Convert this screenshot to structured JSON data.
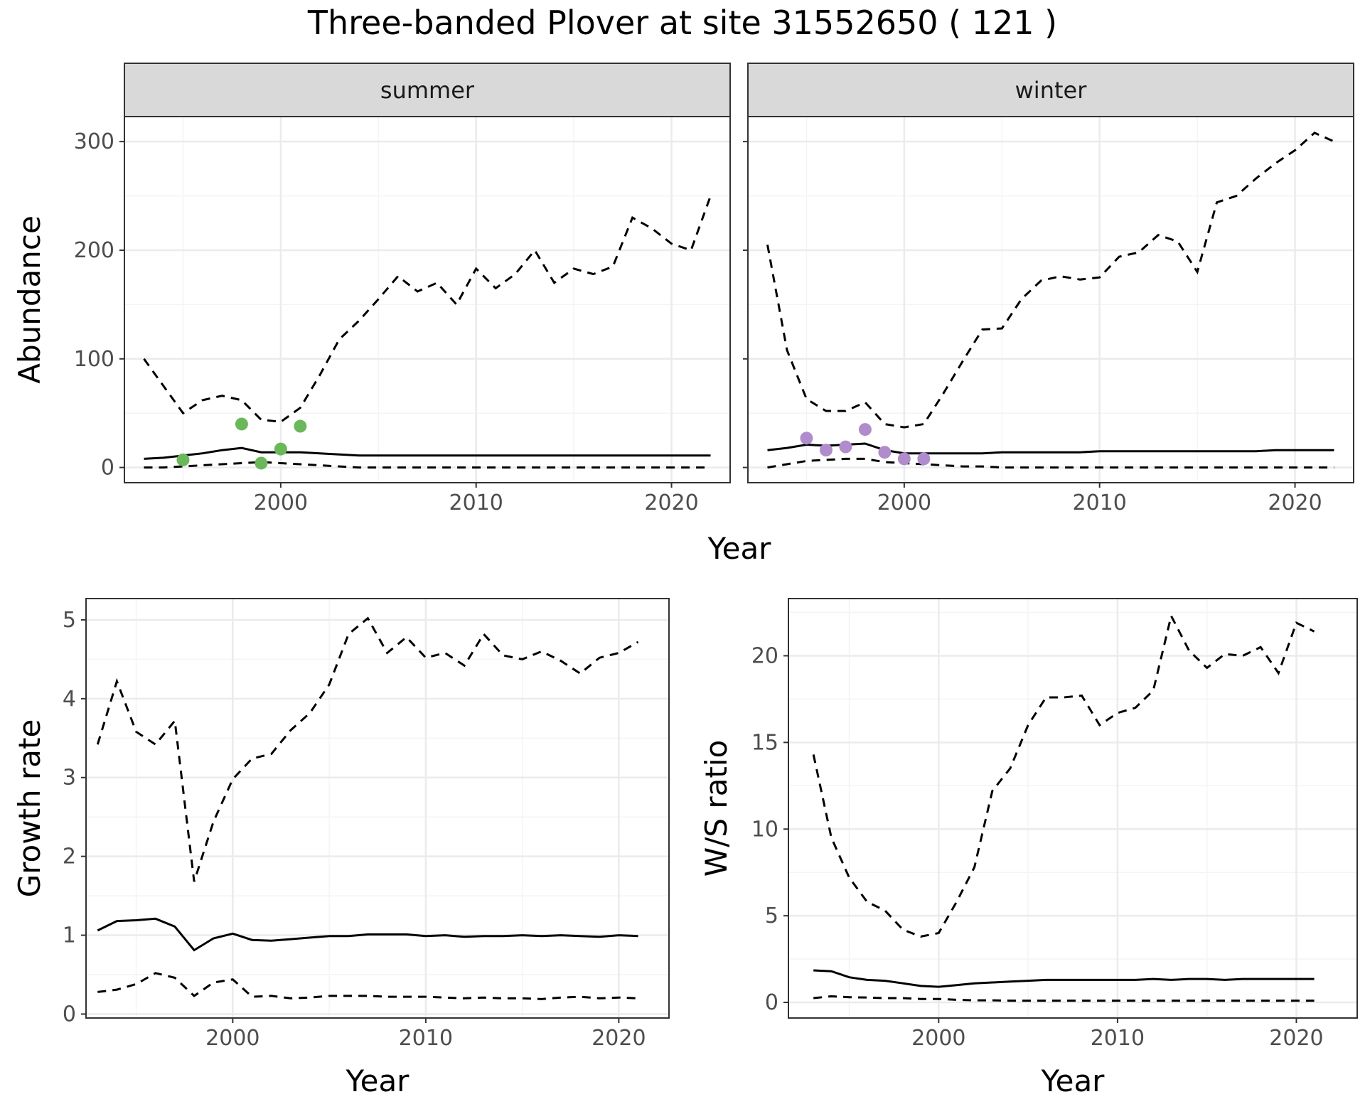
{
  "title": "Three-banded Plover at site 31552650 ( 121 )",
  "colors": {
    "summer_points": "#6ab85a",
    "winter_points": "#b18ccc",
    "strip_fill": "#d9d9d9",
    "line": "#000000",
    "grid_major": "#ebebeb",
    "grid_minor": "#f4f4f4"
  },
  "chart_data": [
    {
      "type": "line",
      "panel": "summer",
      "strip": "summer",
      "xlabel": "Year",
      "ylabel": "Abundance",
      "xlim": [
        1992,
        2023
      ],
      "ylim": [
        -14,
        323
      ],
      "xticks": [
        2000,
        2010,
        2020
      ],
      "yticks": [
        0,
        100,
        200,
        300
      ],
      "grid": true,
      "x": [
        1993,
        1994,
        1995,
        1996,
        1997,
        1998,
        1999,
        2000,
        2001,
        2002,
        2003,
        2004,
        2005,
        2006,
        2007,
        2008,
        2009,
        2010,
        2011,
        2012,
        2013,
        2014,
        2015,
        2016,
        2017,
        2018,
        2019,
        2020,
        2021,
        2022
      ],
      "series": [
        {
          "style": "solid",
          "values": [
            8,
            9,
            11,
            13,
            16,
            18,
            14,
            14,
            14,
            13,
            12,
            11,
            11,
            11,
            11,
            11,
            11,
            11,
            11,
            11,
            11,
            11,
            11,
            11,
            11,
            11,
            11,
            11,
            11,
            11
          ]
        },
        {
          "style": "dashed",
          "values": [
            100,
            75,
            50,
            62,
            66,
            62,
            44,
            42,
            55,
            85,
            118,
            135,
            155,
            176,
            162,
            170,
            150,
            183,
            165,
            178,
            200,
            170,
            183,
            178,
            185,
            230,
            220,
            206,
            200,
            250
          ]
        },
        {
          "style": "dashed",
          "values": [
            0,
            0,
            1,
            2,
            3,
            4,
            5,
            4,
            3,
            2,
            1,
            0,
            0,
            0,
            0,
            0,
            0,
            0,
            0,
            0,
            0,
            0,
            0,
            0,
            0,
            0,
            0,
            0,
            0,
            0
          ]
        }
      ],
      "points": {
        "x": [
          1995,
          1998,
          1999,
          2000,
          2001
        ],
        "y": [
          7,
          40,
          4,
          17,
          38
        ]
      }
    },
    {
      "type": "line",
      "panel": "winter",
      "strip": "winter",
      "xlabel": "Year",
      "ylabel": "Abundance",
      "xlim": [
        1992,
        2023
      ],
      "ylim": [
        -14,
        323
      ],
      "xticks": [
        2000,
        2010,
        2020
      ],
      "yticks": [
        0,
        100,
        200,
        300
      ],
      "grid": true,
      "x": [
        1993,
        1994,
        1995,
        1996,
        1997,
        1998,
        1999,
        2000,
        2001,
        2002,
        2003,
        2004,
        2005,
        2006,
        2007,
        2008,
        2009,
        2010,
        2011,
        2012,
        2013,
        2014,
        2015,
        2016,
        2017,
        2018,
        2019,
        2020,
        2021,
        2022
      ],
      "series": [
        {
          "style": "solid",
          "values": [
            16,
            18,
            21,
            20,
            21,
            22,
            16,
            13,
            13,
            13,
            13,
            13,
            14,
            14,
            14,
            14,
            14,
            15,
            15,
            15,
            15,
            15,
            15,
            15,
            15,
            15,
            16,
            16,
            16,
            16
          ]
        },
        {
          "style": "dashed",
          "values": [
            205,
            108,
            63,
            52,
            52,
            60,
            40,
            37,
            40,
            68,
            98,
            127,
            128,
            155,
            172,
            176,
            173,
            175,
            194,
            198,
            214,
            208,
            180,
            244,
            250,
            266,
            280,
            292,
            308,
            300
          ]
        },
        {
          "style": "dashed",
          "values": [
            0,
            3,
            6,
            7,
            8,
            8,
            5,
            4,
            3,
            2,
            1,
            1,
            0,
            0,
            0,
            0,
            0,
            0,
            0,
            0,
            0,
            0,
            0,
            0,
            0,
            0,
            0,
            0,
            0,
            0
          ]
        }
      ],
      "points": {
        "x": [
          1995,
          1996,
          1997,
          1998,
          1999,
          2000,
          2001
        ],
        "y": [
          27,
          16,
          19,
          35,
          14,
          8,
          8
        ]
      }
    },
    {
      "type": "line",
      "panel": "growth",
      "xlabel": "Year",
      "ylabel": "Growth rate",
      "xlim": [
        1992.4,
        2022.6
      ],
      "ylim": [
        -0.05,
        5.27
      ],
      "xticks": [
        2000,
        2010,
        2020
      ],
      "yticks": [
        0,
        1,
        2,
        3,
        4,
        5
      ],
      "grid": true,
      "x": [
        1993,
        1994,
        1995,
        1996,
        1997,
        1998,
        1999,
        2000,
        2001,
        2002,
        2003,
        2004,
        2005,
        2006,
        2007,
        2008,
        2009,
        2010,
        2011,
        2012,
        2013,
        2014,
        2015,
        2016,
        2017,
        2018,
        2019,
        2020,
        2021
      ],
      "series": [
        {
          "style": "solid",
          "values": [
            1.06,
            1.18,
            1.19,
            1.21,
            1.11,
            0.81,
            0.96,
            1.02,
            0.94,
            0.93,
            0.95,
            0.97,
            0.99,
            0.99,
            1.01,
            1.01,
            1.01,
            0.99,
            1.0,
            0.98,
            0.99,
            0.99,
            1.0,
            0.99,
            1.0,
            0.99,
            0.98,
            1.0,
            0.99
          ]
        },
        {
          "style": "dashed",
          "values": [
            3.42,
            4.22,
            3.58,
            3.42,
            3.72,
            1.68,
            2.44,
            2.98,
            3.24,
            3.3,
            3.6,
            3.82,
            4.18,
            4.82,
            5.02,
            4.58,
            4.78,
            4.52,
            4.58,
            4.42,
            4.82,
            4.55,
            4.5,
            4.6,
            4.48,
            4.32,
            4.52,
            4.58,
            4.72
          ]
        },
        {
          "style": "dashed",
          "values": [
            0.28,
            0.31,
            0.38,
            0.52,
            0.46,
            0.23,
            0.4,
            0.44,
            0.22,
            0.23,
            0.2,
            0.21,
            0.23,
            0.23,
            0.23,
            0.22,
            0.22,
            0.22,
            0.21,
            0.2,
            0.21,
            0.2,
            0.2,
            0.19,
            0.21,
            0.22,
            0.2,
            0.21,
            0.2
          ]
        }
      ]
    },
    {
      "type": "line",
      "panel": "ratio",
      "xlabel": "Year",
      "ylabel": "W/S ratio",
      "xlim": [
        1991.6,
        2023.4
      ],
      "ylim": [
        -0.9,
        23.3
      ],
      "xticks": [
        2000,
        2010,
        2020
      ],
      "yticks": [
        0,
        5,
        10,
        15,
        20
      ],
      "grid": true,
      "x": [
        1993,
        1994,
        1995,
        1996,
        1997,
        1998,
        1999,
        2000,
        2001,
        2002,
        2003,
        2004,
        2005,
        2006,
        2007,
        2008,
        2009,
        2010,
        2011,
        2012,
        2013,
        2014,
        2015,
        2016,
        2017,
        2018,
        2019,
        2020,
        2021
      ],
      "series": [
        {
          "style": "solid",
          "values": [
            1.85,
            1.8,
            1.45,
            1.3,
            1.25,
            1.1,
            0.95,
            0.9,
            1.0,
            1.1,
            1.15,
            1.2,
            1.25,
            1.3,
            1.3,
            1.3,
            1.3,
            1.3,
            1.3,
            1.35,
            1.3,
            1.35,
            1.35,
            1.3,
            1.35,
            1.35,
            1.35,
            1.35,
            1.35
          ]
        },
        {
          "style": "dashed",
          "values": [
            14.3,
            9.5,
            7.2,
            5.8,
            5.3,
            4.2,
            3.8,
            4.0,
            5.8,
            7.8,
            12.2,
            13.5,
            16.0,
            17.6,
            17.6,
            17.7,
            16.0,
            16.7,
            17.0,
            18.0,
            22.3,
            20.3,
            19.3,
            20.1,
            20.0,
            20.5,
            19.0,
            21.9,
            21.4
          ]
        },
        {
          "style": "dashed",
          "values": [
            0.25,
            0.35,
            0.3,
            0.28,
            0.25,
            0.25,
            0.2,
            0.2,
            0.15,
            0.12,
            0.12,
            0.1,
            0.1,
            0.1,
            0.1,
            0.1,
            0.1,
            0.1,
            0.1,
            0.1,
            0.1,
            0.1,
            0.1,
            0.1,
            0.1,
            0.1,
            0.1,
            0.1,
            0.1
          ]
        }
      ]
    }
  ]
}
